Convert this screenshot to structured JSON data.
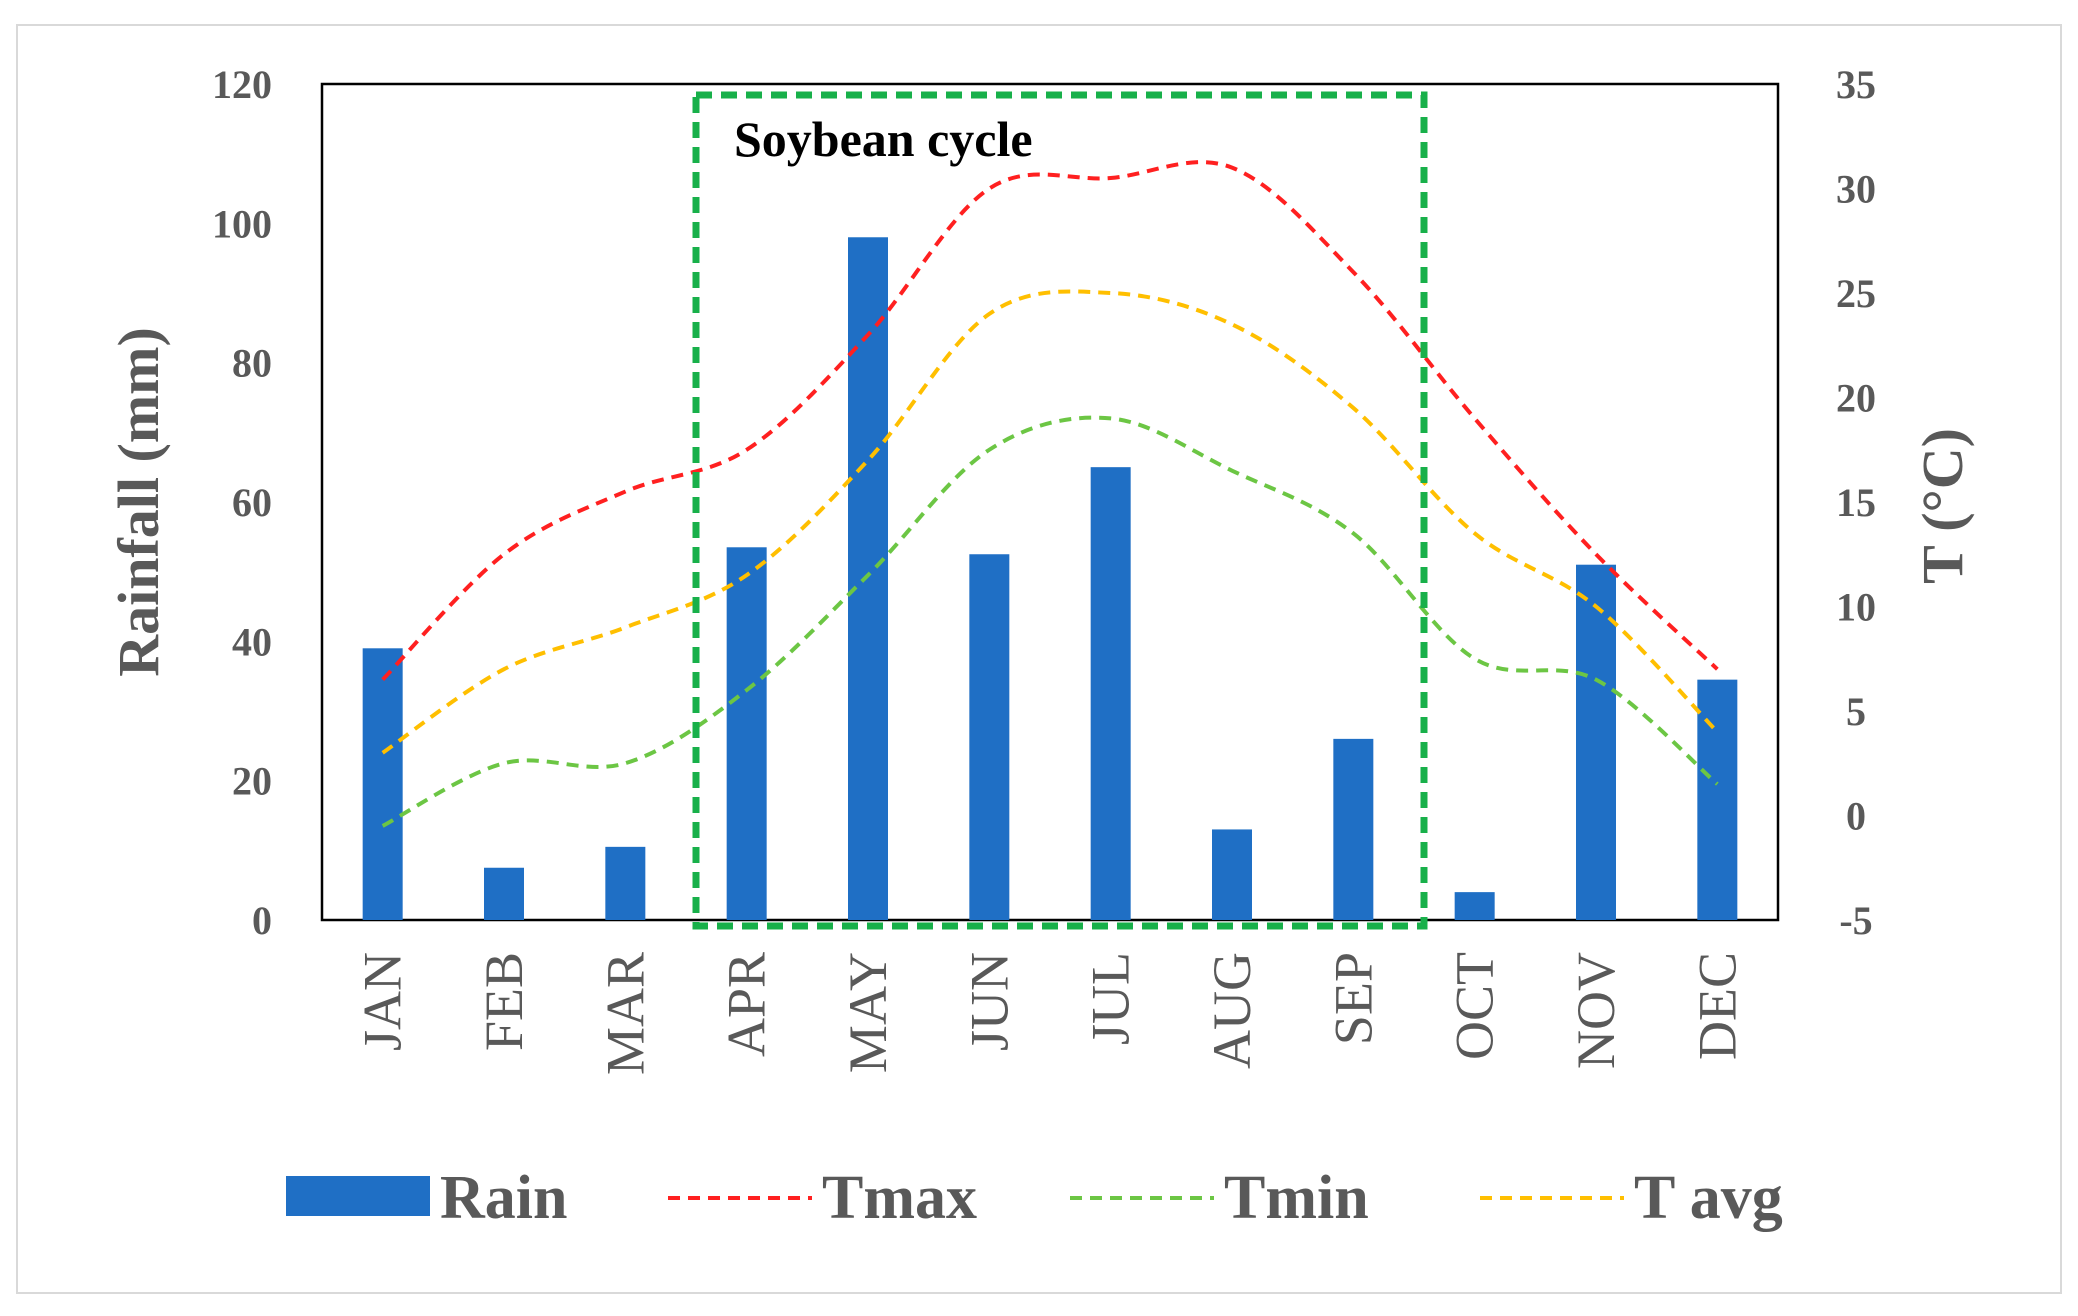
{
  "chart_data": {
    "type": "bar+line",
    "categories": [
      "JAN",
      "FEB",
      "MAR",
      "APR",
      "MAY",
      "JUN",
      "JUL",
      "AUG",
      "SEP",
      "OCT",
      "NOV",
      "DEC"
    ],
    "bar_series": {
      "name": "Rain",
      "axis": "left",
      "values": [
        39,
        7.5,
        10.5,
        53.5,
        98,
        52.5,
        65,
        13,
        26,
        4,
        51,
        34.5
      ]
    },
    "line_series": [
      {
        "name": "Tmax",
        "axis": "right",
        "style": "dashed",
        "values": [
          6.5,
          12.5,
          15.5,
          17.5,
          23,
          30,
          30.5,
          31,
          26,
          19,
          12.5,
          7
        ]
      },
      {
        "name": "Tmin",
        "axis": "right",
        "style": "dashed",
        "values": [
          -0.5,
          2.5,
          2.5,
          6,
          11.5,
          17.5,
          19,
          16.5,
          13.5,
          7.5,
          6.5,
          1.5
        ]
      },
      {
        "name": "T avg",
        "axis": "right",
        "style": "dashed",
        "values": [
          3,
          7,
          9,
          11.5,
          17,
          24,
          25,
          23.5,
          19.5,
          13.5,
          10,
          4
        ]
      }
    ],
    "y_left": {
      "label": "Rainfall (mm)",
      "ticks": [
        "0",
        "20",
        "40",
        "60",
        "80",
        "100",
        "120"
      ],
      "lim": [
        0,
        120
      ]
    },
    "y_right": {
      "label": "T (°C)",
      "ticks": [
        "-5",
        "0",
        "5",
        "10",
        "15",
        "20",
        "25",
        "30",
        "35"
      ],
      "lim": [
        -5,
        35
      ]
    },
    "annotation": {
      "label": "Soybean cycle",
      "start": "APR",
      "end": "SEP"
    },
    "legend": {
      "position": "bottom",
      "entries": [
        "Rain",
        "Tmax",
        "Tmin",
        "T avg"
      ]
    },
    "colors": {
      "Rain": "#1f6fc5",
      "Tmax": "#ff2020",
      "Tmin": "#6cc644",
      "T avg": "#ffbf00",
      "annotation_box": "#18b04a",
      "axis_text": "#595959",
      "plot_border": "#000000"
    },
    "grid": false
  }
}
